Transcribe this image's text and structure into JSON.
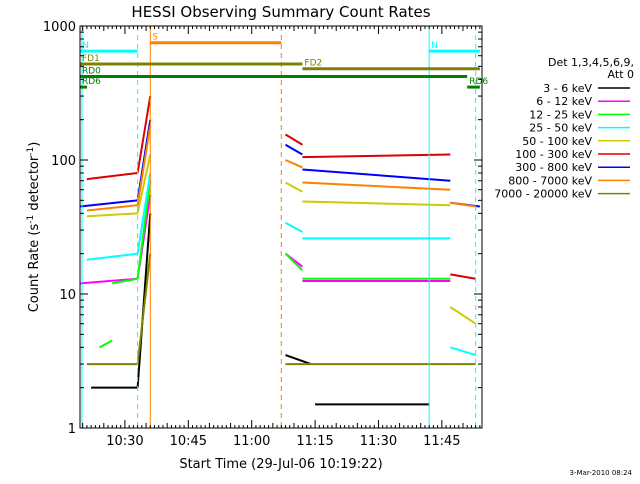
{
  "chart_data": {
    "type": "line",
    "title": "HESSI Observing Summary Count Rates",
    "xlabel": "Start Time (29-Jul-06 10:19:22)",
    "ylabel_main": "Count Rate (s",
    "ylabel_sup1": "-1",
    "ylabel_mid": " detector",
    "ylabel_sup2": "-1",
    "ylabel_end": ")",
    "y_scale": "log",
    "xlim": [
      "10:19:22",
      "11:54:30"
    ],
    "ylim": [
      1,
      1000
    ],
    "x_ticks": [
      "10:30",
      "10:45",
      "11:00",
      "11:15",
      "11:30",
      "11:45"
    ],
    "y_ticks": [
      "1",
      "10",
      "100",
      "1000"
    ],
    "detectors": "Det 1,3,4,5,6,9,",
    "attenuator": "Att 0",
    "series": [
      {
        "name": "3 - 6 keV",
        "color": "#000000",
        "segments": [
          {
            "x": [
              "10:22",
              "10:33"
            ],
            "y": [
              2,
              2
            ]
          },
          {
            "x": [
              "10:33",
              "10:36"
            ],
            "y": [
              2,
              40
            ]
          },
          {
            "x": [
              "11:08",
              "11:14"
            ],
            "y": [
              3.5,
              3
            ]
          },
          {
            "x": [
              "11:15",
              "11:42"
            ],
            "y": [
              1.5,
              1.5
            ]
          }
        ]
      },
      {
        "name": "6 - 12 keV",
        "color": "#ff00ff",
        "segments": [
          {
            "x": [
              "10:19:22",
              "10:33"
            ],
            "y": [
              12,
              13
            ]
          },
          {
            "x": [
              "10:33",
              "10:36"
            ],
            "y": [
              13,
              55
            ]
          },
          {
            "x": [
              "11:08",
              "11:12"
            ],
            "y": [
              20,
              16
            ]
          },
          {
            "x": [
              "11:12",
              "11:47"
            ],
            "y": [
              12.5,
              12.5
            ]
          }
        ]
      },
      {
        "name": "12 - 25 keV",
        "color": "#00ff00",
        "segments": [
          {
            "x": [
              "10:24",
              "10:27"
            ],
            "y": [
              4,
              4.5
            ]
          },
          {
            "x": [
              "10:27",
              "10:33"
            ],
            "y": [
              12,
              13
            ]
          },
          {
            "x": [
              "10:33",
              "10:36"
            ],
            "y": [
              13,
              70
            ]
          },
          {
            "x": [
              "11:08",
              "11:12"
            ],
            "y": [
              20,
              15
            ]
          },
          {
            "x": [
              "11:12",
              "11:47"
            ],
            "y": [
              13,
              13
            ]
          }
        ]
      },
      {
        "name": "25 - 50 keV",
        "color": "#00ffff",
        "segments": [
          {
            "x": [
              "10:21",
              "10:33"
            ],
            "y": [
              18,
              20
            ]
          },
          {
            "x": [
              "10:33",
              "10:36"
            ],
            "y": [
              20,
              80
            ]
          },
          {
            "x": [
              "11:08",
              "11:12"
            ],
            "y": [
              34,
              29
            ]
          },
          {
            "x": [
              "11:12",
              "11:47"
            ],
            "y": [
              26,
              26
            ]
          },
          {
            "x": [
              "11:47",
              "11:53"
            ],
            "y": [
              4,
              3.5
            ]
          }
        ]
      },
      {
        "name": "50 - 100 keV",
        "color": "#cccc00",
        "segments": [
          {
            "x": [
              "10:21",
              "10:33"
            ],
            "y": [
              38,
              40
            ]
          },
          {
            "x": [
              "10:33",
              "10:36"
            ],
            "y": [
              40,
              110
            ]
          },
          {
            "x": [
              "11:08",
              "11:12"
            ],
            "y": [
              68,
              58
            ]
          },
          {
            "x": [
              "11:12",
              "11:47"
            ],
            "y": [
              49,
              46
            ]
          },
          {
            "x": [
              "11:47",
              "11:53"
            ],
            "y": [
              8,
              6
            ]
          }
        ]
      },
      {
        "name": "100 - 300 keV",
        "color": "#dd0000",
        "segments": [
          {
            "x": [
              "10:21",
              "10:33"
            ],
            "y": [
              72,
              80
            ]
          },
          {
            "x": [
              "10:33",
              "10:36"
            ],
            "y": [
              80,
              300
            ]
          },
          {
            "x": [
              "11:08",
              "11:12"
            ],
            "y": [
              155,
              130
            ]
          },
          {
            "x": [
              "11:12",
              "11:47"
            ],
            "y": [
              105,
              110
            ]
          },
          {
            "x": [
              "11:47",
              "11:53"
            ],
            "y": [
              14,
              13
            ]
          }
        ]
      },
      {
        "name": "300 - 800 keV",
        "color": "#0000ff",
        "segments": [
          {
            "x": [
              "10:19:22",
              "10:33"
            ],
            "y": [
              45,
              50
            ]
          },
          {
            "x": [
              "10:33",
              "10:36"
            ],
            "y": [
              50,
              200
            ]
          },
          {
            "x": [
              "11:08",
              "11:12"
            ],
            "y": [
              130,
              110
            ]
          },
          {
            "x": [
              "11:12",
              "11:47"
            ],
            "y": [
              85,
              70
            ]
          },
          {
            "x": [
              "11:47",
              "11:54"
            ],
            "y": [
              48,
              45
            ]
          }
        ]
      },
      {
        "name": "800 - 7000 keV",
        "color": "#ff8000",
        "segments": [
          {
            "x": [
              "10:21",
              "10:33"
            ],
            "y": [
              42,
              46
            ]
          },
          {
            "x": [
              "10:33",
              "10:36"
            ],
            "y": [
              46,
              180
            ]
          },
          {
            "x": [
              "11:08",
              "11:12"
            ],
            "y": [
              100,
              88
            ]
          },
          {
            "x": [
              "11:12",
              "11:47"
            ],
            "y": [
              68,
              60
            ]
          },
          {
            "x": [
              "11:47",
              "11:53"
            ],
            "y": [
              48,
              45
            ]
          }
        ]
      },
      {
        "name": "7000 - 20000 keV",
        "color": "#808000",
        "segments": [
          {
            "x": [
              "10:21",
              "10:33"
            ],
            "y": [
              3,
              3
            ]
          },
          {
            "x": [
              "10:33",
              "10:36"
            ],
            "y": [
              3,
              20
            ]
          },
          {
            "x": [
              "11:08",
              "11:47"
            ],
            "y": [
              3,
              3
            ]
          },
          {
            "x": [
              "11:47",
              "11:53"
            ],
            "y": [
              3,
              3
            ]
          }
        ]
      }
    ],
    "flags": [
      {
        "label": "S",
        "color": "#ff8000",
        "x": [
          "10:36",
          "11:07"
        ],
        "y": 750
      },
      {
        "label": "N",
        "color": "#00ffff",
        "x": [
          "10:19:22",
          "10:33"
        ],
        "y": 650
      },
      {
        "label": "N",
        "color": "#00ffff",
        "x": [
          "11:42",
          "11:54"
        ],
        "y": 650
      },
      {
        "label": "FD1",
        "color": "#808000",
        "x": [
          "10:19:22",
          "11:12"
        ],
        "y": 520
      },
      {
        "label": "FD2",
        "color": "#808000",
        "x": [
          "11:12",
          "11:54"
        ],
        "y": 480
      },
      {
        "label": "RD0",
        "color": "#008000",
        "x": [
          "10:19:22",
          "11:51"
        ],
        "y": 420
      },
      {
        "label": "RD6",
        "color": "#008000",
        "x": [
          "10:19:22",
          "10:21"
        ],
        "y": 350
      },
      {
        "label": "RD6",
        "color": "#008000",
        "x": [
          "11:51",
          "11:54"
        ],
        "y": 350
      }
    ],
    "vlines": [
      {
        "x": "10:19:50",
        "color": "#00ffff",
        "style": "solid"
      },
      {
        "x": "10:33",
        "color": "#00ffff",
        "style": "dashed"
      },
      {
        "x": "10:36",
        "color": "#ff8000",
        "style": "solid"
      },
      {
        "x": "11:07",
        "color": "#ff8000",
        "style": "dashed"
      },
      {
        "x": "11:42",
        "color": "#00ffff",
        "style": "solid"
      },
      {
        "x": "11:53",
        "color": "#00ffff",
        "style": "dashed"
      }
    ],
    "grid": false,
    "legend_position": "right"
  },
  "timestamp": "3-Mar-2010 08:24"
}
